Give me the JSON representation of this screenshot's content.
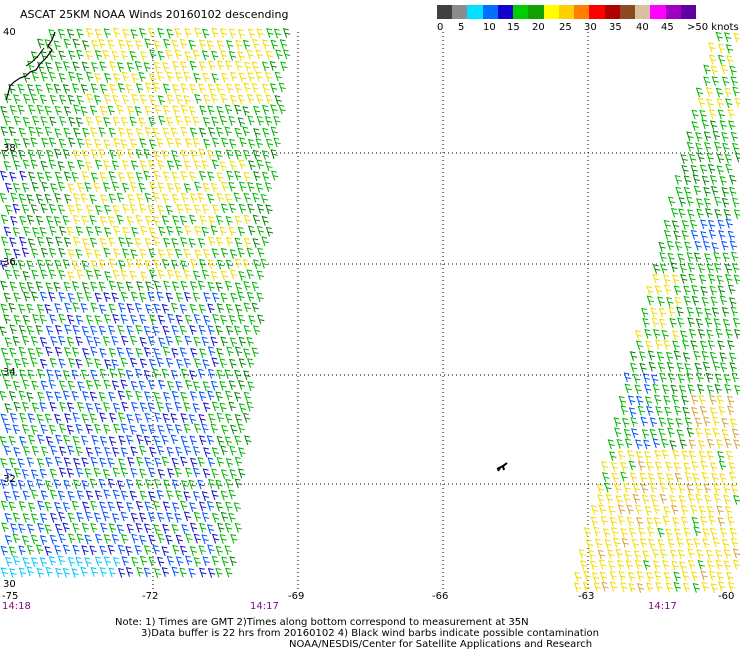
{
  "title": "ASCAT 25KM NOAA Winds 20160102 descending",
  "colorbar": {
    "colors": [
      "#404040",
      "#8c8c8c",
      "#00e0ff",
      "#0070ff",
      "#1400cc",
      "#00cc00",
      "#10a000",
      "#ffff00",
      "#ffd000",
      "#ff8000",
      "#ff0000",
      "#b00000",
      "#8c4a20",
      "#d8c0a0",
      "#ff00ff",
      "#a000c0",
      "#6000a0"
    ],
    "labels": [
      "0",
      "5",
      "10",
      "15",
      "20",
      "25",
      "30",
      "35",
      "40",
      "45",
      ">50 knots"
    ]
  },
  "map": {
    "lat_labels": [
      "40",
      "38",
      "36",
      "34",
      "32",
      "30"
    ],
    "lon_labels": [
      "-75",
      "-72",
      "-69",
      "-66",
      "-63",
      "-60"
    ],
    "time_labels": [
      "14:18",
      "14:17",
      "14:17"
    ]
  },
  "swaths": {
    "colors": {
      "green": "#00b400",
      "dark_green": "#008800",
      "yellow": "#f2dc00",
      "blue": "#0050ff",
      "dark_blue": "#1010c8",
      "cyan": "#00c8ff",
      "orange": "#d8a040"
    }
  },
  "notes": {
    "line1": "Note: 1) Times are GMT 2)Times along bottom correspond to measurement at 35N",
    "line2": "3)Data buffer is 22 hrs from 20160102 4) Black wind barbs indicate possible contamination",
    "line3": "NOAA/NESDIS/Center for Satellite Applications and Research"
  }
}
